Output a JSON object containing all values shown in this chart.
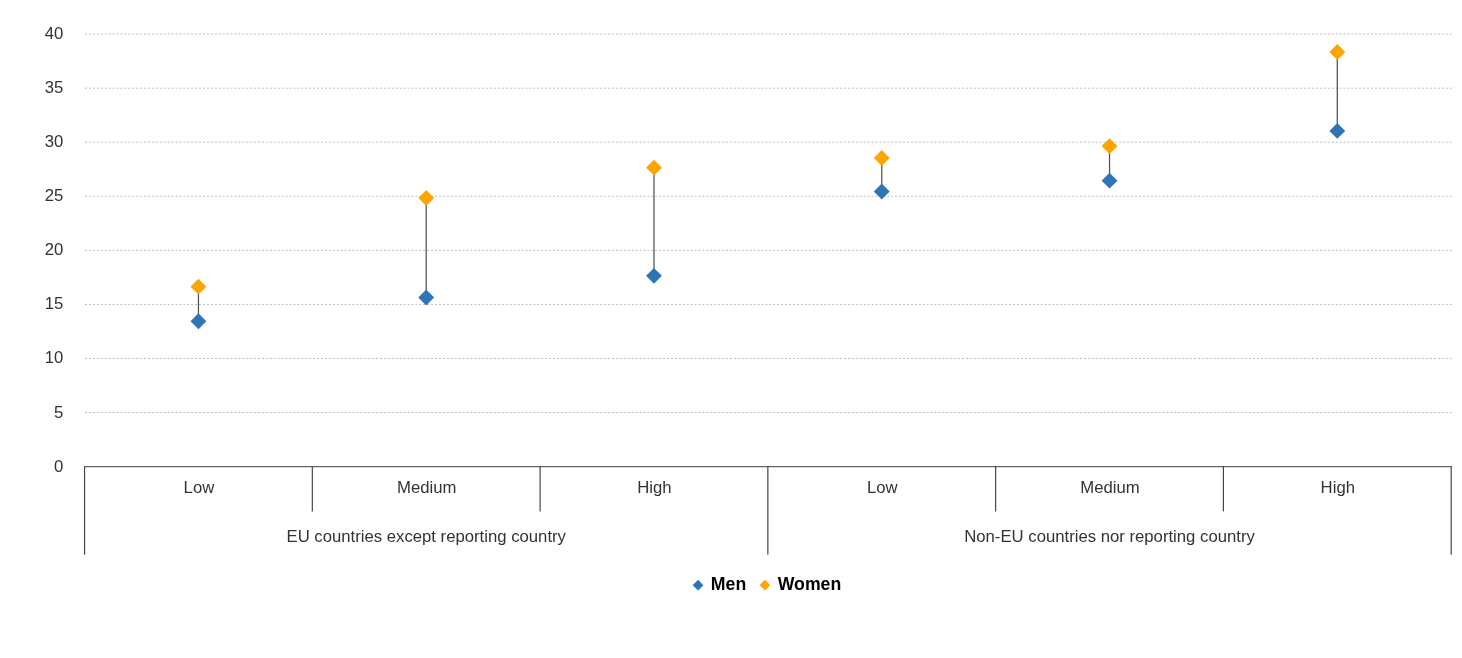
{
  "chart_data": {
    "type": "scatter",
    "categories": [
      "Low",
      "Medium",
      "High",
      "Low",
      "Medium",
      "High"
    ],
    "series": [
      {
        "name": "Men",
        "color": "#2e75b6",
        "values": [
          13.4,
          15.6,
          17.6,
          25.4,
          26.4,
          31.0
        ]
      },
      {
        "name": "Women",
        "color": "#ffa500",
        "values": [
          16.6,
          24.8,
          27.6,
          28.5,
          29.6,
          38.3
        ]
      }
    ],
    "ylim": [
      0,
      40
    ],
    "yticks": [
      0,
      5,
      10,
      15,
      20,
      25,
      30,
      35,
      40
    ],
    "grid": "y",
    "marker": "diamond",
    "legend": "bottom",
    "annotations": [
      "EU countries except reporting country",
      "Non-EU countries nor reporting country"
    ]
  }
}
